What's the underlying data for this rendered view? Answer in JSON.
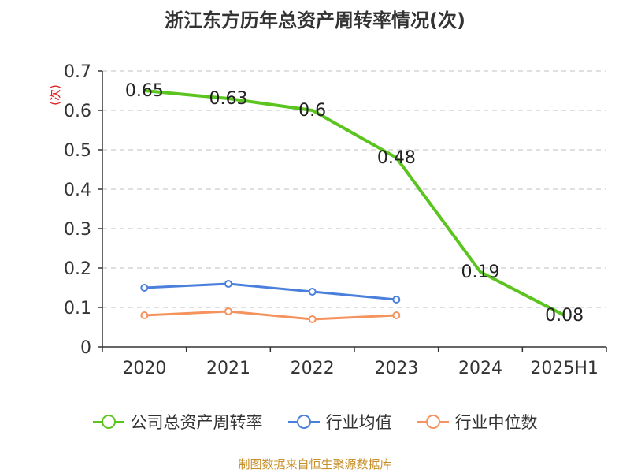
{
  "page": {
    "title": "浙江东方历年总资产周转率情况(次)",
    "unit_label": "(次)",
    "source": "制图数据来自恒生聚源数据库"
  },
  "chart_data": {
    "type": "line",
    "title": "浙江东方历年总资产周转率情况(次)",
    "ylabel": "(次)",
    "categories": [
      "2020",
      "2021",
      "2022",
      "2023",
      "2024",
      "2025H1"
    ],
    "ylim": [
      0,
      0.7
    ],
    "yticks": [
      "0",
      "0.1",
      "0.2",
      "0.3",
      "0.4",
      "0.5",
      "0.6",
      "0.7"
    ],
    "grid": true,
    "legend_position": "bottom",
    "series": [
      {
        "name": "公司总资产周转率",
        "color": "#5cc41f",
        "values": [
          0.65,
          0.63,
          0.6,
          0.48,
          0.19,
          0.08
        ],
        "labels": [
          "0.65",
          "0.63",
          "0.6",
          "0.48",
          "0.19",
          "0.08"
        ],
        "markers": false
      },
      {
        "name": "行业均值",
        "color": "#4a7fdc",
        "values": [
          0.15,
          0.16,
          0.14,
          0.12,
          null,
          null
        ],
        "markers": true
      },
      {
        "name": "行业中位数",
        "color": "#f5935e",
        "values": [
          0.08,
          0.09,
          0.07,
          0.08,
          null,
          null
        ],
        "markers": true
      }
    ]
  }
}
